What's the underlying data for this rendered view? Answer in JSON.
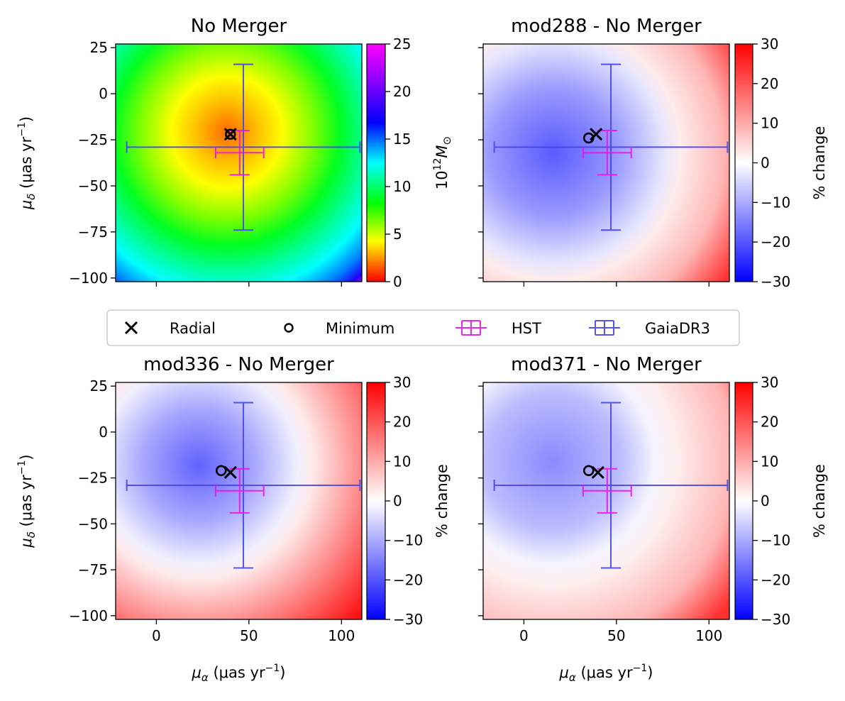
{
  "colors": {
    "hst": "#ee11ee",
    "gaia": "#4444ee",
    "marker": "#000000"
  },
  "legend": {
    "items": [
      {
        "label": "Radial",
        "marker": "x-icon"
      },
      {
        "label": "Minimum",
        "marker": "circle-icon"
      },
      {
        "label": "HST",
        "marker": "errorbar-icon"
      },
      {
        "label": "GaiaDR3",
        "marker": "errorbar-icon"
      }
    ]
  },
  "chart_data": [
    {
      "type": "heatmap",
      "title": "No Merger",
      "xlabel": "",
      "ylabel": "μ_δ (μas yr⁻¹)",
      "colorbar_label": "10¹² M_⊙",
      "colormap": "hsv-gist_rainbow",
      "xlim": [
        -22,
        111
      ],
      "ylim": [
        -102,
        27
      ],
      "x_ticks": [
        0,
        50,
        100
      ],
      "y_ticks": [
        25,
        0,
        -25,
        -50,
        -75,
        -100
      ],
      "x_ticklabels": [
        "",
        "",
        ""
      ],
      "y_ticklabels": [
        "25",
        "0",
        "−25",
        "−50",
        "−75",
        "−100"
      ],
      "colorbar_range": [
        0,
        25
      ],
      "colorbar_ticks": [
        "25",
        "20",
        "15",
        "10",
        "5",
        "0"
      ],
      "field_center": [
        40,
        -23
      ],
      "radial": [
        40,
        -22
      ],
      "minimum": [
        40,
        -22
      ],
      "hst": {
        "x": 45,
        "y": -32,
        "xerr": 13,
        "yerr": 12
      },
      "gaia": {
        "x": 47,
        "y": -29,
        "xerr": 63,
        "yerr": 45
      }
    },
    {
      "type": "heatmap",
      "title": "mod288 - No Merger",
      "xlabel": "",
      "ylabel": "",
      "colorbar_label": "% change",
      "colormap": "bwr",
      "xlim": [
        -22,
        111
      ],
      "ylim": [
        -102,
        27
      ],
      "x_ticks": [
        0,
        50,
        100
      ],
      "y_ticks": [
        25,
        0,
        -25,
        -50,
        -75,
        -100
      ],
      "x_ticklabels": [
        "",
        "",
        ""
      ],
      "y_ticklabels": [
        "",
        "",
        "",
        "",
        "",
        ""
      ],
      "colorbar_range": [
        -30,
        30
      ],
      "colorbar_ticks": [
        "30",
        "20",
        "10",
        "0",
        "−10",
        "−20",
        "−30"
      ],
      "blue_center": [
        20,
        -33
      ],
      "radial": [
        39,
        -22
      ],
      "minimum": [
        35,
        -24
      ],
      "hst": {
        "x": 45,
        "y": -32,
        "xerr": 13,
        "yerr": 12
      },
      "gaia": {
        "x": 47,
        "y": -29,
        "xerr": 63,
        "yerr": 45
      }
    },
    {
      "type": "heatmap",
      "title": "mod336 - No Merger",
      "xlabel": "μ_α (μas yr⁻¹)",
      "ylabel": "μ_δ (μas yr⁻¹)",
      "colorbar_label": "% change",
      "colormap": "bwr",
      "xlim": [
        -22,
        111
      ],
      "ylim": [
        -102,
        27
      ],
      "x_ticks": [
        0,
        50,
        100
      ],
      "y_ticks": [
        25,
        0,
        -25,
        -50,
        -75,
        -100
      ],
      "x_ticklabels": [
        "0",
        "50",
        "100"
      ],
      "y_ticklabels": [
        "25",
        "0",
        "−25",
        "−50",
        "−75",
        "−100"
      ],
      "colorbar_range": [
        -30,
        30
      ],
      "colorbar_ticks": [
        "30",
        "20",
        "10",
        "0",
        "−10",
        "−20",
        "−30"
      ],
      "blue_center": [
        27,
        -15
      ],
      "radial": [
        40,
        -22
      ],
      "minimum": [
        35,
        -21
      ],
      "hst": {
        "x": 45,
        "y": -32,
        "xerr": 13,
        "yerr": 12
      },
      "gaia": {
        "x": 47,
        "y": -29,
        "xerr": 63,
        "yerr": 45
      }
    },
    {
      "type": "heatmap",
      "title": "mod371 - No Merger",
      "xlabel": "μ_α (μas yr⁻¹)",
      "ylabel": "",
      "colorbar_label": "% change",
      "colormap": "bwr",
      "xlim": [
        -22,
        111
      ],
      "ylim": [
        -102,
        27
      ],
      "x_ticks": [
        0,
        50,
        100
      ],
      "y_ticks": [
        25,
        0,
        -25,
        -50,
        -75,
        -100
      ],
      "x_ticklabels": [
        "0",
        "50",
        "100"
      ],
      "y_ticklabels": [
        "",
        "",
        "",
        "",
        "",
        ""
      ],
      "colorbar_range": [
        -30,
        30
      ],
      "colorbar_ticks": [
        "30",
        "20",
        "10",
        "0",
        "−10",
        "−20",
        "−30"
      ],
      "blue_center": [
        22,
        -15
      ],
      "radial": [
        40,
        -22
      ],
      "minimum": [
        35,
        -21
      ],
      "hst": {
        "x": 45,
        "y": -32,
        "xerr": 13,
        "yerr": 12
      },
      "gaia": {
        "x": 47,
        "y": -29,
        "xerr": 63,
        "yerr": 45
      }
    }
  ]
}
